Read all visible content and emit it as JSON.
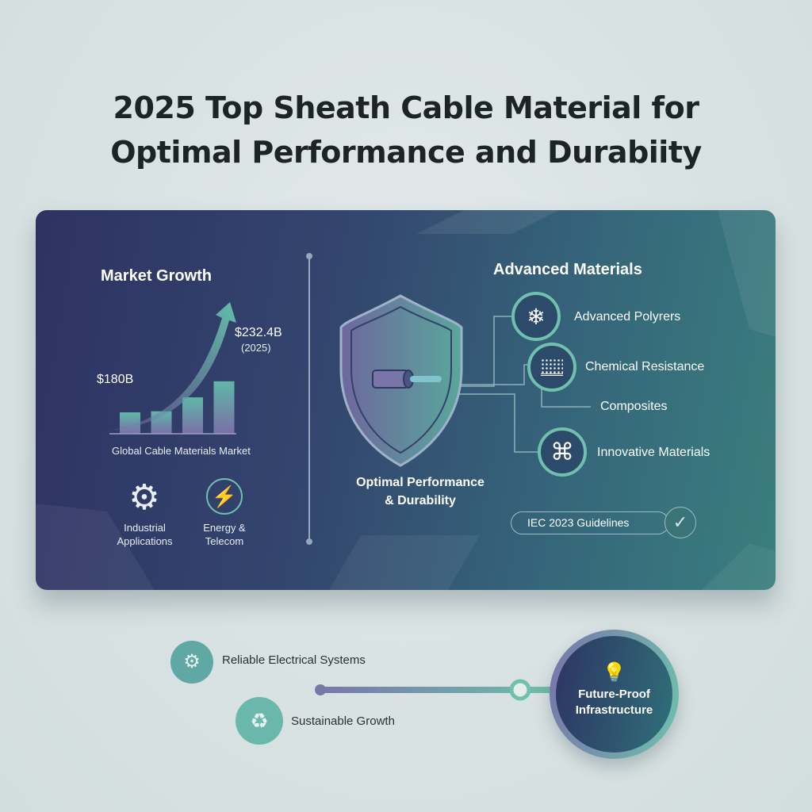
{
  "title": {
    "line1": "2025 Top Sheath Cable Material for",
    "line2": "Optimal Performance and Durabiity"
  },
  "market": {
    "heading": "Market Growth",
    "start_value": "$180B",
    "end_value": "$232.4B",
    "end_year": "(2025)",
    "caption": "Global Cable Materials Market",
    "bars": [
      1,
      1.05,
      1.7,
      2.45
    ],
    "apps": [
      {
        "label": "Industrial Applications",
        "icon": "gear-icon"
      },
      {
        "label": "Energy & Telecom",
        "icon": "lightning-icon"
      }
    ]
  },
  "center": {
    "label_line1": "Optimal Performance",
    "label_line2": "& Durability",
    "icon": "shield-cable-icon"
  },
  "materials": {
    "heading": "Advanced Materials",
    "items": [
      {
        "label": "Advanced Polyrers",
        "icon": "snowflake-icon"
      },
      {
        "label": "Chemical Resistance",
        "icon": "texture-layer-icon"
      },
      {
        "label": "Composites"
      },
      {
        "label": "Innovative Materials",
        "icon": "knot-icon"
      }
    ],
    "badge": "IEC 2023 Guidelines"
  },
  "bottom": {
    "items": [
      {
        "label": "Reliable Electrical Systems",
        "icon": "electrical-system-icon"
      },
      {
        "label": "Sustainable Growth",
        "icon": "sustainable-gear-icon"
      }
    ],
    "goal": {
      "line1": "Future-Proof",
      "line2": "Infrastructure",
      "icon": "lightbulb-icon"
    }
  },
  "colors": {
    "accent": "#6fc0ac",
    "purple": "#7a78b0",
    "card_start": "#2e3263",
    "card_end": "#3a7f7e"
  }
}
